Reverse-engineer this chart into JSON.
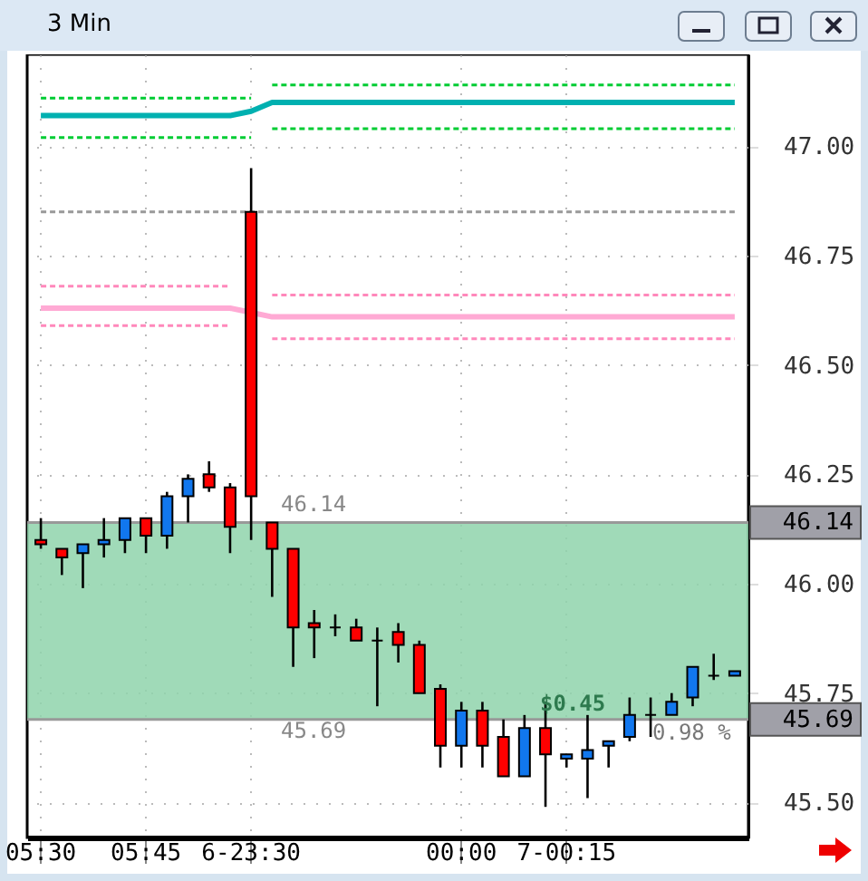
{
  "chart_data": {
    "type": "candlestick",
    "title": "3 Min",
    "categories": [
      "05:30",
      null,
      null,
      null,
      null,
      "05:45",
      null,
      null,
      null,
      null,
      "6-23:30",
      null,
      null,
      null,
      null,
      null,
      null,
      null,
      null,
      null,
      "00:00",
      null,
      null,
      null,
      null,
      "7-00:15",
      null,
      null,
      null,
      null,
      null,
      null,
      null,
      null
    ],
    "ohlc": [
      [
        46.1,
        46.15,
        46.08,
        46.09
      ],
      [
        46.08,
        46.08,
        46.02,
        46.06
      ],
      [
        46.07,
        46.09,
        45.99,
        46.09
      ],
      [
        46.09,
        46.15,
        46.06,
        46.1
      ],
      [
        46.1,
        46.15,
        46.07,
        46.15
      ],
      [
        46.15,
        46.15,
        46.07,
        46.11
      ],
      [
        46.11,
        46.21,
        46.08,
        46.2
      ],
      [
        46.2,
        46.25,
        46.14,
        46.24
      ],
      [
        46.25,
        46.28,
        46.21,
        46.22
      ],
      [
        46.22,
        46.23,
        46.07,
        46.13
      ],
      [
        46.85,
        46.95,
        46.1,
        46.2
      ],
      [
        46.14,
        46.14,
        45.97,
        46.08
      ],
      [
        46.08,
        46.08,
        45.81,
        45.9
      ],
      [
        45.91,
        45.94,
        45.83,
        45.9
      ],
      [
        45.9,
        45.93,
        45.88,
        45.9
      ],
      [
        45.9,
        45.92,
        45.87,
        45.87
      ],
      [
        45.87,
        45.9,
        45.72,
        45.87
      ],
      [
        45.89,
        45.91,
        45.82,
        45.86
      ],
      [
        45.86,
        45.87,
        45.75,
        45.75
      ],
      [
        45.76,
        45.77,
        45.58,
        45.63
      ],
      [
        45.63,
        45.73,
        45.58,
        45.71
      ],
      [
        45.71,
        45.73,
        45.58,
        45.63
      ],
      [
        45.65,
        45.69,
        45.56,
        45.56
      ],
      [
        45.56,
        45.7,
        45.56,
        45.67
      ],
      [
        45.67,
        45.73,
        45.49,
        45.61
      ],
      [
        45.6,
        45.61,
        45.58,
        45.61
      ],
      [
        45.6,
        45.7,
        45.51,
        45.62
      ],
      [
        45.63,
        45.64,
        45.58,
        45.64
      ],
      [
        45.65,
        45.74,
        45.64,
        45.7
      ],
      [
        45.7,
        45.74,
        45.65,
        45.7
      ],
      [
        45.7,
        45.75,
        45.7,
        45.73
      ],
      [
        45.74,
        45.81,
        45.72,
        45.81
      ],
      [
        45.79,
        45.84,
        45.78,
        45.79
      ],
      [
        45.79,
        45.8,
        45.79,
        45.8
      ]
    ],
    "series": [
      {
        "type": "line",
        "color": "#00cc33",
        "line_style": "dashed",
        "values": [
          47.11,
          47.11,
          47.11,
          47.11,
          47.11,
          47.11,
          47.11,
          47.11,
          47.11,
          47.11,
          47.11,
          null,
          null,
          null,
          null,
          null,
          null,
          null,
          null,
          null,
          null,
          null,
          null,
          null,
          null,
          null,
          null,
          null,
          null,
          null,
          null,
          null,
          null,
          null
        ]
      },
      {
        "type": "line",
        "color": "#00cc33",
        "line_style": "dashed",
        "values": [
          null,
          null,
          null,
          null,
          null,
          null,
          null,
          null,
          null,
          null,
          null,
          47.14,
          47.14,
          47.14,
          47.14,
          47.14,
          47.14,
          47.14,
          47.14,
          47.14,
          47.14,
          47.14,
          47.14,
          47.14,
          47.14,
          47.14,
          47.14,
          47.14,
          47.14,
          47.14,
          47.14,
          47.14,
          47.14,
          47.14
        ]
      },
      {
        "type": "line",
        "color": "#00cc33",
        "line_style": "dashed",
        "values": [
          47.02,
          47.02,
          47.02,
          47.02,
          47.02,
          47.02,
          47.02,
          47.02,
          47.02,
          47.02,
          47.02,
          null,
          null,
          null,
          null,
          null,
          null,
          null,
          null,
          null,
          null,
          null,
          null,
          null,
          null,
          null,
          null,
          null,
          null,
          null,
          null,
          null,
          null,
          null
        ]
      },
      {
        "type": "line",
        "color": "#00cc33",
        "line_style": "dashed",
        "values": [
          null,
          null,
          null,
          null,
          null,
          null,
          null,
          null,
          null,
          null,
          null,
          47.04,
          47.04,
          47.04,
          47.04,
          47.04,
          47.04,
          47.04,
          47.04,
          47.04,
          47.04,
          47.04,
          47.04,
          47.04,
          47.04,
          47.04,
          47.04,
          47.04,
          47.04,
          47.04,
          47.04,
          47.04,
          47.04,
          47.04
        ]
      },
      {
        "type": "line",
        "color": "#00b0b0",
        "line_style": "solid",
        "values": [
          47.07,
          47.07,
          47.07,
          47.07,
          47.07,
          47.07,
          47.07,
          47.07,
          47.07,
          47.07,
          47.08,
          47.1,
          47.1,
          47.1,
          47.1,
          47.1,
          47.1,
          47.1,
          47.1,
          47.1,
          47.1,
          47.1,
          47.1,
          47.1,
          47.1,
          47.1,
          47.1,
          47.1,
          47.1,
          47.1,
          47.1,
          47.1,
          47.1,
          47.1
        ]
      },
      {
        "type": "line",
        "color": "#999999",
        "line_style": "dashed",
        "values": [
          46.85,
          46.85,
          46.85,
          46.85,
          46.85,
          46.85,
          46.85,
          46.85,
          46.85,
          46.85,
          46.85,
          46.85,
          46.85,
          46.85,
          46.85,
          46.85,
          46.85,
          46.85,
          46.85,
          46.85,
          46.85,
          46.85,
          46.85,
          46.85,
          46.85,
          46.85,
          46.85,
          46.85,
          46.85,
          46.85,
          46.85,
          46.85,
          46.85,
          46.85
        ]
      },
      {
        "type": "line",
        "color": "#ff88bb",
        "line_style": "dashed",
        "values": [
          46.68,
          46.68,
          46.68,
          46.68,
          46.68,
          46.68,
          46.68,
          46.68,
          46.68,
          46.68,
          null,
          null,
          null,
          null,
          null,
          null,
          null,
          null,
          null,
          null,
          null,
          null,
          null,
          null,
          null,
          null,
          null,
          null,
          null,
          null,
          null,
          null,
          null,
          null
        ]
      },
      {
        "type": "line",
        "color": "#ff88bb",
        "line_style": "dashed",
        "values": [
          null,
          null,
          null,
          null,
          null,
          null,
          null,
          null,
          null,
          null,
          null,
          46.66,
          46.66,
          46.66,
          46.66,
          46.66,
          46.66,
          46.66,
          46.66,
          46.66,
          46.66,
          46.66,
          46.66,
          46.66,
          46.66,
          46.66,
          46.66,
          46.66,
          46.66,
          46.66,
          46.66,
          46.66,
          46.66,
          46.66
        ]
      },
      {
        "type": "line",
        "color": "#ffaad4",
        "line_style": "solid",
        "values": [
          46.63,
          46.63,
          46.63,
          46.63,
          46.63,
          46.63,
          46.63,
          46.63,
          46.63,
          46.63,
          46.62,
          46.61,
          46.61,
          46.61,
          46.61,
          46.61,
          46.61,
          46.61,
          46.61,
          46.61,
          46.61,
          46.61,
          46.61,
          46.61,
          46.61,
          46.61,
          46.61,
          46.61,
          46.61,
          46.61,
          46.61,
          46.61,
          46.61,
          46.61
        ]
      },
      {
        "type": "line",
        "color": "#ff88bb",
        "line_style": "dashed",
        "values": [
          46.59,
          46.59,
          46.59,
          46.59,
          46.59,
          46.59,
          46.59,
          46.59,
          46.59,
          46.59,
          null,
          null,
          null,
          null,
          null,
          null,
          null,
          null,
          null,
          null,
          null,
          null,
          null,
          null,
          null,
          null,
          null,
          null,
          null,
          null,
          null,
          null,
          null,
          null
        ]
      },
      {
        "type": "line",
        "color": "#ff88bb",
        "line_style": "dashed",
        "values": [
          null,
          null,
          null,
          null,
          null,
          null,
          null,
          null,
          null,
          null,
          null,
          46.56,
          46.56,
          46.56,
          46.56,
          46.56,
          46.56,
          46.56,
          46.56,
          46.56,
          46.56,
          46.56,
          46.56,
          46.56,
          46.56,
          46.56,
          46.56,
          46.56,
          46.56,
          46.56,
          46.56,
          46.56,
          46.56,
          46.56
        ]
      }
    ],
    "ylim": [
      45.42,
      47.21
    ],
    "yticks": [
      {
        "value": 45.5,
        "label": "45.50"
      },
      {
        "value": 45.75,
        "label": "45.75"
      },
      {
        "value": 46,
        "label": "46.00"
      },
      {
        "value": 46.25,
        "label": "46.25"
      },
      {
        "value": 46.5,
        "label": "46.50"
      },
      {
        "value": 46.75,
        "label": "46.75"
      },
      {
        "value": 47,
        "label": "47.00"
      }
    ],
    "ref_lines": [
      {
        "axis": "y",
        "value": 46.14,
        "label": "46.14",
        "color": "#999999"
      },
      {
        "axis": "y",
        "value": 45.69,
        "label": "45.69",
        "color": "#999999"
      }
    ],
    "bands": [
      {
        "axis": "y",
        "from": 45.69,
        "to": 46.14,
        "color": "#8fd4ac"
      }
    ],
    "annotations": [
      "46.14",
      "45.69",
      "$0.45",
      "0.98 %"
    ],
    "grid": true,
    "marker": "none"
  }
}
